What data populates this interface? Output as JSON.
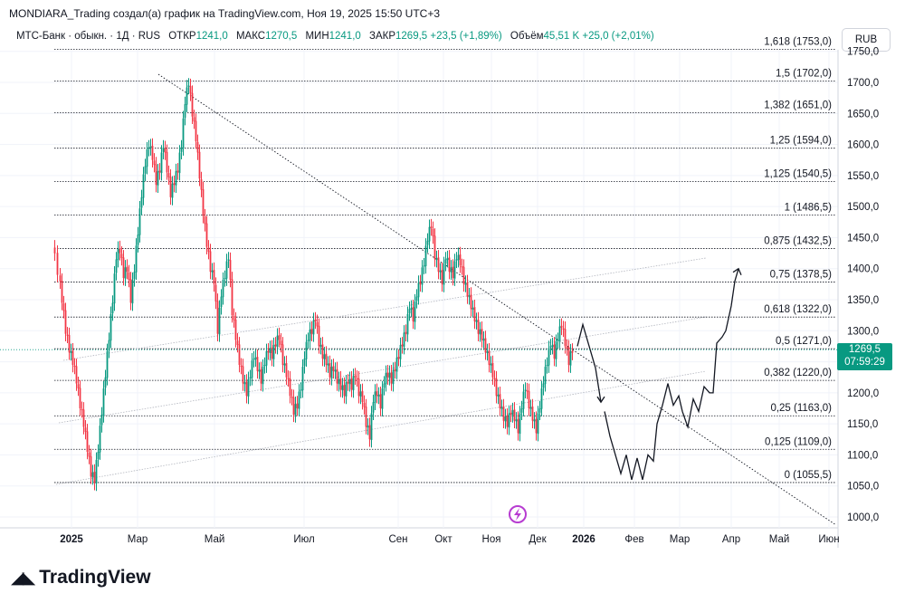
{
  "header": {
    "attribution": "MONDIARA_Trading создал(а) график на TradingView.com, Ноя 19, 2025 15:50 UTC+3"
  },
  "legend": {
    "symbol": "МТС-Банк · обыкн. · 1Д · RUS",
    "open_label": "ОТКР",
    "open": "1241,0",
    "high_label": "МАКС",
    "high": "1270,5",
    "low_label": "МИН",
    "low": "1241,0",
    "close_label": "ЗАКР",
    "close": "1269,5",
    "change": "+23,5 (+1,89%)",
    "volume_label": "Объём",
    "volume": "45,51 K",
    "volume_change": "+25,0 (+2,01%)"
  },
  "currency_button": "RUB",
  "last_price": {
    "value": "1269,5",
    "countdown": "07:59:29",
    "color": "#089981"
  },
  "footer": {
    "brand": "TradingView"
  },
  "colors": {
    "up": "#089981",
    "down": "#f23645",
    "grid": "#f0f3fa",
    "fib": "#131722"
  },
  "chart_data": {
    "type": "candlestick",
    "title": "МТС-Банк · обыкн. · 1Д · RUS",
    "ylim": [
      975,
      1765
    ],
    "y_ticks": [
      "1000,0",
      "1050,0",
      "1100,0",
      "1150,0",
      "1200,0",
      "1250,0",
      "1300,0",
      "1350,0",
      "1400,0",
      "1450,0",
      "1500,0",
      "1550,0",
      "1600,0",
      "1650,0",
      "1700,0",
      "1750,0"
    ],
    "x_ticks": [
      "2025",
      "Мар",
      "Май",
      "Июл",
      "Сен",
      "Окт",
      "Ноя",
      "Дек",
      "2026",
      "Фев",
      "Мар",
      "Апр",
      "Май",
      "Июн"
    ],
    "fib_levels": [
      {
        "ratio": "0",
        "price": 1055.5,
        "label": "0 (1055,5)"
      },
      {
        "ratio": "0,125",
        "price": 1109.0,
        "label": "0,125 (1109,0)"
      },
      {
        "ratio": "0,25",
        "price": 1163.0,
        "label": "0,25 (1163,0)"
      },
      {
        "ratio": "0,382",
        "price": 1220.0,
        "label": "0,382 (1220,0)"
      },
      {
        "ratio": "0,5",
        "price": 1271.0,
        "label": "0,5 (1271,0)"
      },
      {
        "ratio": "0,618",
        "price": 1322.0,
        "label": "0,618 (1322,0)"
      },
      {
        "ratio": "0,75",
        "price": 1378.5,
        "label": "0,75 (1378,5)"
      },
      {
        "ratio": "0,875",
        "price": 1432.5,
        "label": "0,875 (1432,5)"
      },
      {
        "ratio": "1",
        "price": 1486.5,
        "label": "1 (1486,5)"
      },
      {
        "ratio": "1,125",
        "price": 1540.5,
        "label": "1,125 (1540,5)"
      },
      {
        "ratio": "1,25",
        "price": 1594.0,
        "label": "1,25 (1594,0)"
      },
      {
        "ratio": "1,382",
        "price": 1651.0,
        "label": "1,382 (1651,0)"
      },
      {
        "ratio": "1,5",
        "price": 1702.0,
        "label": "1,5 (1702,0)"
      },
      {
        "ratio": "1,618",
        "price": 1753.0,
        "label": "1,618 (1753,0)"
      }
    ],
    "close_path": [
      {
        "x": 0,
        "y": 1440
      },
      {
        "x": 6,
        "y": 1395
      },
      {
        "x": 10,
        "y": 1350
      },
      {
        "x": 14,
        "y": 1300
      },
      {
        "x": 18,
        "y": 1270
      },
      {
        "x": 22,
        "y": 1250
      },
      {
        "x": 26,
        "y": 1220
      },
      {
        "x": 30,
        "y": 1180
      },
      {
        "x": 34,
        "y": 1150
      },
      {
        "x": 38,
        "y": 1110
      },
      {
        "x": 42,
        "y": 1070
      },
      {
        "x": 46,
        "y": 1060
      },
      {
        "x": 50,
        "y": 1110
      },
      {
        "x": 54,
        "y": 1170
      },
      {
        "x": 58,
        "y": 1230
      },
      {
        "x": 62,
        "y": 1290
      },
      {
        "x": 66,
        "y": 1350
      },
      {
        "x": 70,
        "y": 1420
      },
      {
        "x": 74,
        "y": 1430
      },
      {
        "x": 78,
        "y": 1390
      },
      {
        "x": 82,
        "y": 1400
      },
      {
        "x": 86,
        "y": 1350
      },
      {
        "x": 90,
        "y": 1400
      },
      {
        "x": 94,
        "y": 1460
      },
      {
        "x": 98,
        "y": 1520
      },
      {
        "x": 102,
        "y": 1570
      },
      {
        "x": 106,
        "y": 1600
      },
      {
        "x": 110,
        "y": 1580
      },
      {
        "x": 114,
        "y": 1540
      },
      {
        "x": 118,
        "y": 1560
      },
      {
        "x": 122,
        "y": 1600
      },
      {
        "x": 126,
        "y": 1560
      },
      {
        "x": 130,
        "y": 1520
      },
      {
        "x": 134,
        "y": 1540
      },
      {
        "x": 138,
        "y": 1560
      },
      {
        "x": 142,
        "y": 1600
      },
      {
        "x": 146,
        "y": 1670
      },
      {
        "x": 150,
        "y": 1700
      },
      {
        "x": 154,
        "y": 1650
      },
      {
        "x": 158,
        "y": 1610
      },
      {
        "x": 162,
        "y": 1550
      },
      {
        "x": 166,
        "y": 1490
      },
      {
        "x": 170,
        "y": 1440
      },
      {
        "x": 174,
        "y": 1400
      },
      {
        "x": 178,
        "y": 1380
      },
      {
        "x": 182,
        "y": 1300
      },
      {
        "x": 186,
        "y": 1360
      },
      {
        "x": 190,
        "y": 1390
      },
      {
        "x": 194,
        "y": 1420
      },
      {
        "x": 198,
        "y": 1330
      },
      {
        "x": 202,
        "y": 1290
      },
      {
        "x": 206,
        "y": 1250
      },
      {
        "x": 210,
        "y": 1220
      },
      {
        "x": 214,
        "y": 1200
      },
      {
        "x": 218,
        "y": 1230
      },
      {
        "x": 222,
        "y": 1260
      },
      {
        "x": 226,
        "y": 1240
      },
      {
        "x": 230,
        "y": 1220
      },
      {
        "x": 234,
        "y": 1250
      },
      {
        "x": 238,
        "y": 1270
      },
      {
        "x": 242,
        "y": 1260
      },
      {
        "x": 246,
        "y": 1280
      },
      {
        "x": 250,
        "y": 1290
      },
      {
        "x": 254,
        "y": 1250
      },
      {
        "x": 258,
        "y": 1230
      },
      {
        "x": 262,
        "y": 1200
      },
      {
        "x": 266,
        "y": 1170
      },
      {
        "x": 270,
        "y": 1180
      },
      {
        "x": 274,
        "y": 1210
      },
      {
        "x": 278,
        "y": 1260
      },
      {
        "x": 282,
        "y": 1290
      },
      {
        "x": 286,
        "y": 1300
      },
      {
        "x": 290,
        "y": 1320
      },
      {
        "x": 294,
        "y": 1280
      },
      {
        "x": 298,
        "y": 1260
      },
      {
        "x": 302,
        "y": 1250
      },
      {
        "x": 306,
        "y": 1230
      },
      {
        "x": 310,
        "y": 1240
      },
      {
        "x": 314,
        "y": 1220
      },
      {
        "x": 318,
        "y": 1210
      },
      {
        "x": 322,
        "y": 1200
      },
      {
        "x": 326,
        "y": 1220
      },
      {
        "x": 330,
        "y": 1210
      },
      {
        "x": 334,
        "y": 1230
      },
      {
        "x": 338,
        "y": 1200
      },
      {
        "x": 342,
        "y": 1190
      },
      {
        "x": 346,
        "y": 1150
      },
      {
        "x": 350,
        "y": 1130
      },
      {
        "x": 354,
        "y": 1190
      },
      {
        "x": 358,
        "y": 1200
      },
      {
        "x": 362,
        "y": 1180
      },
      {
        "x": 366,
        "y": 1220
      },
      {
        "x": 370,
        "y": 1230
      },
      {
        "x": 374,
        "y": 1220
      },
      {
        "x": 378,
        "y": 1240
      },
      {
        "x": 382,
        "y": 1260
      },
      {
        "x": 386,
        "y": 1280
      },
      {
        "x": 390,
        "y": 1300
      },
      {
        "x": 394,
        "y": 1340
      },
      {
        "x": 398,
        "y": 1320
      },
      {
        "x": 402,
        "y": 1360
      },
      {
        "x": 406,
        "y": 1380
      },
      {
        "x": 410,
        "y": 1410
      },
      {
        "x": 414,
        "y": 1450
      },
      {
        "x": 418,
        "y": 1470
      },
      {
        "x": 422,
        "y": 1420
      },
      {
        "x": 426,
        "y": 1400
      },
      {
        "x": 430,
        "y": 1380
      },
      {
        "x": 434,
        "y": 1420
      },
      {
        "x": 438,
        "y": 1400
      },
      {
        "x": 442,
        "y": 1390
      },
      {
        "x": 446,
        "y": 1420
      },
      {
        "x": 450,
        "y": 1410
      },
      {
        "x": 454,
        "y": 1380
      },
      {
        "x": 458,
        "y": 1360
      },
      {
        "x": 462,
        "y": 1340
      },
      {
        "x": 466,
        "y": 1320
      },
      {
        "x": 470,
        "y": 1300
      },
      {
        "x": 474,
        "y": 1290
      },
      {
        "x": 478,
        "y": 1270
      },
      {
        "x": 482,
        "y": 1250
      },
      {
        "x": 486,
        "y": 1230
      },
      {
        "x": 490,
        "y": 1200
      },
      {
        "x": 494,
        "y": 1180
      },
      {
        "x": 498,
        "y": 1160
      },
      {
        "x": 502,
        "y": 1150
      },
      {
        "x": 506,
        "y": 1170
      },
      {
        "x": 510,
        "y": 1160
      },
      {
        "x": 514,
        "y": 1140
      },
      {
        "x": 518,
        "y": 1180
      },
      {
        "x": 522,
        "y": 1210
      },
      {
        "x": 526,
        "y": 1180
      },
      {
        "x": 530,
        "y": 1160
      },
      {
        "x": 534,
        "y": 1140
      },
      {
        "x": 538,
        "y": 1180
      },
      {
        "x": 542,
        "y": 1220
      },
      {
        "x": 546,
        "y": 1250
      },
      {
        "x": 550,
        "y": 1280
      },
      {
        "x": 554,
        "y": 1260
      },
      {
        "x": 558,
        "y": 1290
      },
      {
        "x": 562,
        "y": 1310
      },
      {
        "x": 566,
        "y": 1280
      },
      {
        "x": 570,
        "y": 1250
      },
      {
        "x": 574,
        "y": 1269.5
      }
    ],
    "forecast_path": [
      {
        "x": 578,
        "y": 1275
      },
      {
        "x": 584,
        "y": 1310
      },
      {
        "x": 592,
        "y": 1270
      },
      {
        "x": 598,
        "y": 1240
      },
      {
        "x": 604,
        "y": 1185
      },
      {
        "x": 608,
        "y": 1170
      },
      {
        "x": 614,
        "y": 1130
      },
      {
        "x": 620,
        "y": 1100
      },
      {
        "x": 626,
        "y": 1070
      },
      {
        "x": 632,
        "y": 1100
      },
      {
        "x": 638,
        "y": 1060
      },
      {
        "x": 644,
        "y": 1095
      },
      {
        "x": 650,
        "y": 1060
      },
      {
        "x": 656,
        "y": 1100
      },
      {
        "x": 662,
        "y": 1090
      },
      {
        "x": 666,
        "y": 1150
      },
      {
        "x": 672,
        "y": 1180
      },
      {
        "x": 678,
        "y": 1215
      },
      {
        "x": 684,
        "y": 1180
      },
      {
        "x": 690,
        "y": 1195
      },
      {
        "x": 694,
        "y": 1170
      },
      {
        "x": 700,
        "y": 1145
      },
      {
        "x": 706,
        "y": 1190
      },
      {
        "x": 712,
        "y": 1170
      },
      {
        "x": 718,
        "y": 1210
      },
      {
        "x": 724,
        "y": 1200
      },
      {
        "x": 728,
        "y": 1200
      },
      {
        "x": 732,
        "y": 1280
      },
      {
        "x": 738,
        "y": 1290
      },
      {
        "x": 742,
        "y": 1300
      },
      {
        "x": 748,
        "y": 1340
      },
      {
        "x": 752,
        "y": 1380
      },
      {
        "x": 756,
        "y": 1400
      }
    ]
  }
}
